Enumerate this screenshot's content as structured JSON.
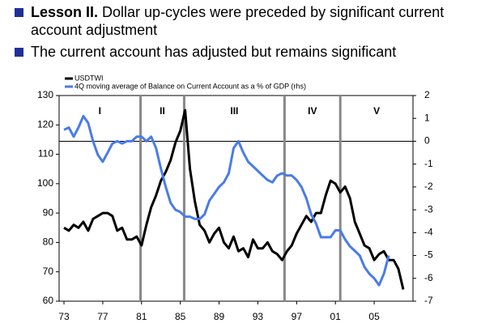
{
  "bullets": [
    {
      "parts": [
        {
          "text": "Lesson II.",
          "bold": true
        },
        {
          "text": " Dollar up-cycles were preceded by significant current account adjustment"
        }
      ]
    },
    {
      "parts": [
        {
          "text": "The current account has adjusted but remains significant"
        }
      ]
    }
  ],
  "chart_data": {
    "type": "line",
    "xlim": [
      1972.5,
      2009
    ],
    "xticks": [
      {
        "value": 1973,
        "label": "73"
      },
      {
        "value": 1977,
        "label": "77"
      },
      {
        "value": 1981,
        "label": "81"
      },
      {
        "value": 1985,
        "label": "85"
      },
      {
        "value": 1989,
        "label": "89"
      },
      {
        "value": 1993,
        "label": "93"
      },
      {
        "value": 1997,
        "label": "97"
      },
      {
        "value": 2001,
        "label": "01"
      },
      {
        "value": 2005,
        "label": "05"
      }
    ],
    "ylim": [
      60,
      130
    ],
    "yticks": [
      60,
      70,
      80,
      90,
      100,
      110,
      120,
      130
    ],
    "y2lim": [
      -7,
      2
    ],
    "y2ticks": [
      -7,
      -6,
      -5,
      -4,
      -3,
      -2,
      -1,
      0,
      1,
      2
    ],
    "periods": {
      "labels": [
        "I",
        "II",
        "III",
        "IV",
        "V"
      ],
      "boundaries": [
        1980.9,
        1985.4,
        1995.75,
        2001.5
      ]
    },
    "series": [
      {
        "name": "USDTWI",
        "color": "#000000",
        "x": [
          1973,
          1973.5,
          1974,
          1974.5,
          1975,
          1975.5,
          1976,
          1976.5,
          1977,
          1977.5,
          1978,
          1978.5,
          1979,
          1979.5,
          1980,
          1980.5,
          1981,
          1981.5,
          1982,
          1982.5,
          1983,
          1983.5,
          1984,
          1984.5,
          1985,
          1985.5,
          1986,
          1986.5,
          1987,
          1987.5,
          1988,
          1988.5,
          1989,
          1989.5,
          1990,
          1990.5,
          1991,
          1991.5,
          1992,
          1992.5,
          1993,
          1993.5,
          1994,
          1994.5,
          1995,
          1995.5,
          1996,
          1996.5,
          1997,
          1997.5,
          1998,
          1998.5,
          1999,
          1999.5,
          2000,
          2000.5,
          2001,
          2001.5,
          2002,
          2002.5,
          2003,
          2003.5,
          2004,
          2004.5,
          2005,
          2005.5,
          2006,
          2006.5,
          2007,
          2007.5,
          2008
        ],
        "values": [
          85,
          84,
          86,
          85,
          87,
          84,
          88,
          89,
          90,
          90,
          89,
          84,
          85,
          81,
          81,
          82,
          79,
          86,
          92,
          96,
          101,
          104,
          108,
          114,
          118,
          125,
          105,
          94,
          86,
          84,
          80,
          83,
          85,
          80,
          78,
          82,
          77,
          78,
          75,
          81,
          78,
          78,
          80,
          77,
          76,
          74,
          77,
          79,
          83,
          86,
          89,
          87,
          90,
          90,
          96,
          101,
          100,
          97,
          99,
          95,
          87,
          83,
          79,
          78,
          74,
          76,
          77,
          74,
          74,
          71,
          64
        ]
      },
      {
        "name": "4Q moving average  of Balance on Current Account as a % of GDP (rhs)",
        "color": "#4a7be8",
        "axis": "y2",
        "x": [
          1973,
          1973.5,
          1974,
          1974.5,
          1975,
          1975.5,
          1976,
          1976.5,
          1977,
          1977.5,
          1978,
          1978.5,
          1979,
          1979.5,
          1980,
          1980.5,
          1981,
          1981.5,
          1982,
          1982.5,
          1983,
          1983.5,
          1984,
          1984.5,
          1985,
          1985.5,
          1986,
          1986.5,
          1987,
          1987.5,
          1988,
          1988.5,
          1989,
          1989.5,
          1990,
          1990.5,
          1991,
          1991.5,
          1992,
          1992.5,
          1993,
          1993.5,
          1994,
          1994.5,
          1995,
          1995.5,
          1996,
          1996.5,
          1997,
          1997.5,
          1998,
          1998.5,
          1999,
          1999.5,
          2000,
          2000.5,
          2001,
          2001.5,
          2002,
          2002.5,
          2003,
          2003.5,
          2004,
          2004.5,
          2005,
          2005.5,
          2006,
          2006.5
        ],
        "values": [
          0.5,
          0.6,
          0.2,
          0.6,
          1.1,
          0.8,
          0.0,
          -0.6,
          -0.9,
          -0.5,
          -0.1,
          0.0,
          -0.1,
          0.0,
          0.0,
          0.2,
          0.2,
          0.0,
          0.2,
          -0.3,
          -1.2,
          -2.0,
          -2.7,
          -3.0,
          -3.1,
          -3.3,
          -3.3,
          -3.4,
          -3.4,
          -3.2,
          -2.6,
          -2.3,
          -2.0,
          -1.8,
          -1.4,
          -0.3,
          0.0,
          -0.5,
          -0.9,
          -1.1,
          -1.3,
          -1.5,
          -1.7,
          -1.8,
          -1.5,
          -1.4,
          -1.5,
          -1.5,
          -1.7,
          -2.0,
          -2.5,
          -3.2,
          -3.6,
          -4.2,
          -4.2,
          -4.2,
          -3.9,
          -3.9,
          -4.3,
          -4.6,
          -4.8,
          -5.0,
          -5.5,
          -5.8,
          -6.0,
          -6.3,
          -5.8,
          -5.0
        ]
      }
    ]
  }
}
